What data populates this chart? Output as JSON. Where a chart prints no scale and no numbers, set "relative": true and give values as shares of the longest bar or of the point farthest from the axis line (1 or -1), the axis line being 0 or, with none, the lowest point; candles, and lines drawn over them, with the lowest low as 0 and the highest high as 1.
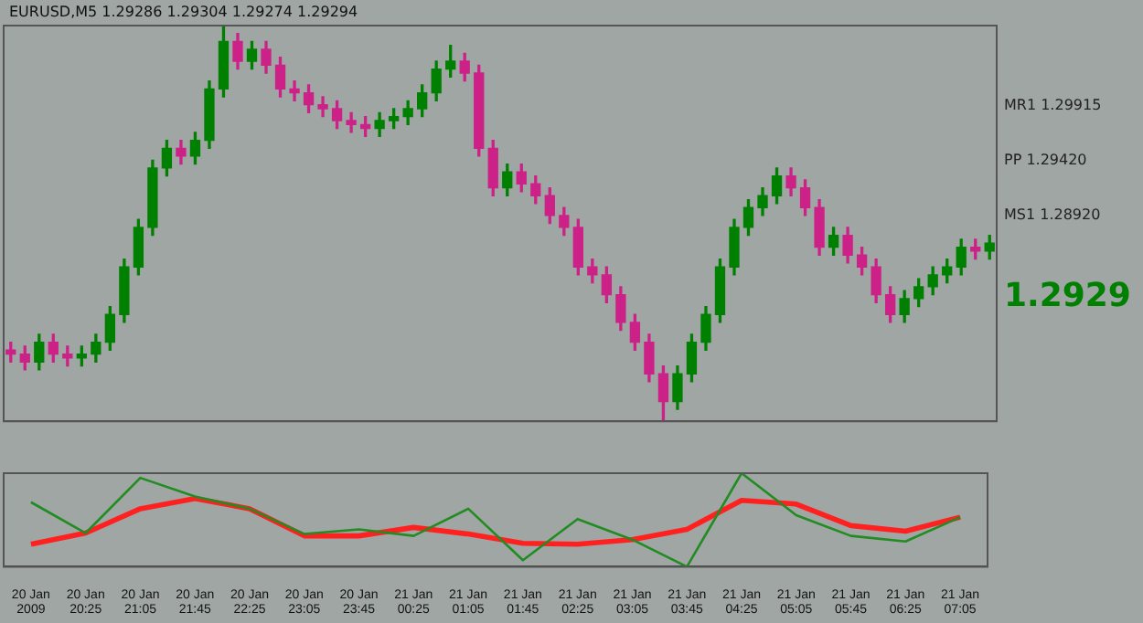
{
  "chart_data": [
    {
      "type": "candlestick",
      "title": "EURUSD,M5 1.29286 1.29304 1.29274 1.29294",
      "relative": true,
      "annotations": [
        "MR1 1.29915",
        "PP 1.29420",
        "MS1 1.28920",
        "1.2929"
      ],
      "categories": [
        null,
        null,
        null,
        null,
        null,
        null,
        null,
        null,
        null,
        null,
        null,
        null,
        null,
        null,
        null,
        null,
        null,
        null,
        null,
        null,
        null,
        null,
        null,
        null,
        null,
        null,
        null,
        null,
        null,
        null,
        null,
        null,
        null,
        null,
        null,
        null,
        null,
        null,
        null,
        null,
        null,
        null,
        null,
        null,
        null,
        null,
        null,
        null,
        null,
        null,
        null,
        null,
        null,
        null,
        null,
        null,
        null,
        null,
        null,
        null,
        null,
        null,
        null,
        null,
        null,
        null,
        null,
        null,
        null,
        null
      ],
      "ohlc": [
        [
          0.18,
          0.2,
          0.15,
          0.17
        ],
        [
          0.17,
          0.19,
          0.13,
          0.15
        ],
        [
          0.15,
          0.22,
          0.13,
          0.2
        ],
        [
          0.2,
          0.22,
          0.15,
          0.17
        ],
        [
          0.17,
          0.19,
          0.14,
          0.16
        ],
        [
          0.16,
          0.19,
          0.14,
          0.17
        ],
        [
          0.17,
          0.22,
          0.15,
          0.2
        ],
        [
          0.2,
          0.29,
          0.18,
          0.27
        ],
        [
          0.27,
          0.41,
          0.25,
          0.39
        ],
        [
          0.39,
          0.51,
          0.37,
          0.49
        ],
        [
          0.49,
          0.66,
          0.47,
          0.64
        ],
        [
          0.64,
          0.71,
          0.62,
          0.69
        ],
        [
          0.69,
          0.71,
          0.65,
          0.67
        ],
        [
          0.67,
          0.73,
          0.65,
          0.71
        ],
        [
          0.71,
          0.86,
          0.69,
          0.84
        ],
        [
          0.84,
          1,
          0.82,
          0.96
        ],
        [
          0.96,
          0.98,
          0.89,
          0.91
        ],
        [
          0.91,
          0.96,
          0.89,
          0.94
        ],
        [
          0.94,
          0.96,
          0.88,
          0.9
        ],
        [
          0.9,
          0.92,
          0.82,
          0.84
        ],
        [
          0.84,
          0.86,
          0.81,
          0.83
        ],
        [
          0.83,
          0.85,
          0.78,
          0.8
        ],
        [
          0.8,
          0.82,
          0.77,
          0.79
        ],
        [
          0.79,
          0.81,
          0.74,
          0.76
        ],
        [
          0.76,
          0.78,
          0.73,
          0.75
        ],
        [
          0.75,
          0.77,
          0.72,
          0.74
        ],
        [
          0.74,
          0.78,
          0.72,
          0.76
        ],
        [
          0.76,
          0.79,
          0.74,
          0.77
        ],
        [
          0.77,
          0.81,
          0.75,
          0.79
        ],
        [
          0.79,
          0.85,
          0.77,
          0.83
        ],
        [
          0.83,
          0.91,
          0.81,
          0.89
        ],
        [
          0.89,
          0.95,
          0.87,
          0.91
        ],
        [
          0.91,
          0.93,
          0.86,
          0.88
        ],
        [
          0.88,
          0.9,
          0.67,
          0.69
        ],
        [
          0.69,
          0.71,
          0.57,
          0.59
        ],
        [
          0.59,
          0.65,
          0.57,
          0.63
        ],
        [
          0.63,
          0.65,
          0.58,
          0.6
        ],
        [
          0.6,
          0.62,
          0.55,
          0.57
        ],
        [
          0.57,
          0.59,
          0.5,
          0.52
        ],
        [
          0.52,
          0.54,
          0.47,
          0.49
        ],
        [
          0.49,
          0.51,
          0.37,
          0.39
        ],
        [
          0.39,
          0.41,
          0.35,
          0.37
        ],
        [
          0.37,
          0.39,
          0.3,
          0.32
        ],
        [
          0.32,
          0.34,
          0.23,
          0.25
        ],
        [
          0.25,
          0.27,
          0.18,
          0.2
        ],
        [
          0.2,
          0.22,
          0.1,
          0.12
        ],
        [
          0.12,
          0.14,
          0,
          0.05
        ],
        [
          0.05,
          0.14,
          0.03,
          0.12
        ],
        [
          0.12,
          0.22,
          0.1,
          0.2
        ],
        [
          0.2,
          0.29,
          0.18,
          0.27
        ],
        [
          0.27,
          0.41,
          0.25,
          0.39
        ],
        [
          0.39,
          0.51,
          0.37,
          0.49
        ],
        [
          0.49,
          0.56,
          0.47,
          0.54
        ],
        [
          0.54,
          0.59,
          0.52,
          0.57
        ],
        [
          0.57,
          0.64,
          0.55,
          0.62
        ],
        [
          0.62,
          0.64,
          0.57,
          0.59
        ],
        [
          0.59,
          0.61,
          0.52,
          0.54
        ],
        [
          0.54,
          0.56,
          0.42,
          0.44
        ],
        [
          0.44,
          0.49,
          0.42,
          0.47
        ],
        [
          0.47,
          0.49,
          0.4,
          0.42
        ],
        [
          0.42,
          0.44,
          0.37,
          0.39
        ],
        [
          0.39,
          0.41,
          0.3,
          0.32
        ],
        [
          0.32,
          0.34,
          0.25,
          0.27
        ],
        [
          0.27,
          0.33,
          0.25,
          0.31
        ],
        [
          0.31,
          0.36,
          0.29,
          0.34
        ],
        [
          0.34,
          0.39,
          0.32,
          0.37
        ],
        [
          0.37,
          0.41,
          0.35,
          0.39
        ],
        [
          0.39,
          0.46,
          0.37,
          0.44
        ],
        [
          0.44,
          0.46,
          0.41,
          0.43
        ],
        [
          0.43,
          0.47,
          0.41,
          0.45
        ]
      ],
      "colors": [
        "#cc2288",
        "#cc2288",
        "#008000",
        "#cc2288",
        "#cc2288",
        "#008000",
        "#008000",
        "#008000",
        "#008000",
        "#008000",
        "#008000",
        "#008000",
        "#cc2288",
        "#008000",
        "#008000",
        "#008000",
        "#cc2288",
        "#008000",
        "#cc2288",
        "#cc2288",
        "#cc2288",
        "#cc2288",
        "#cc2288",
        "#cc2288",
        "#cc2288",
        "#cc2288",
        "#008000",
        "#008000",
        "#008000",
        "#008000",
        "#008000",
        "#008000",
        "#cc2288",
        "#cc2288",
        "#cc2288",
        "#008000",
        "#cc2288",
        "#cc2288",
        "#cc2288",
        "#cc2288",
        "#cc2288",
        "#cc2288",
        "#cc2288",
        "#cc2288",
        "#cc2288",
        "#cc2288",
        "#cc2288",
        "#008000",
        "#008000",
        "#008000",
        "#008000",
        "#008000",
        "#008000",
        "#008000",
        "#008000",
        "#cc2288",
        "#cc2288",
        "#cc2288",
        "#008000",
        "#cc2288",
        "#cc2288",
        "#cc2288",
        "#cc2288",
        "#008000",
        "#008000",
        "#008000",
        "#008000",
        "#008000",
        "#cc2288",
        "#008000"
      ]
    },
    {
      "type": "line",
      "relative": true,
      "categories": [
        "20 Jan 2009",
        "20 Jan 20:25",
        "20 Jan 21:05",
        "20 Jan 21:45",
        "20 Jan 22:25",
        "20 Jan 23:05",
        "20 Jan 23:45",
        "21 Jan 00:25",
        "21 Jan 01:05",
        "21 Jan 01:45",
        "21 Jan 02:25",
        "21 Jan 03:05",
        "21 Jan 03:45",
        "21 Jan 04:25",
        "21 Jan 05:05",
        "21 Jan 05:45",
        "21 Jan 06:25",
        "21 Jan 07:05"
      ],
      "series": [
        {
          "color": "#228b22",
          "values": [
            0.69,
            0.36,
            0.95,
            0.75,
            0.62,
            0.35,
            0.4,
            0.33,
            0.62,
            0.07,
            0.51,
            0.29,
            0,
            1,
            0.55,
            0.33,
            0.27,
            0.53
          ]
        },
        {
          "color": "#ff2020",
          "values": [
            0.24,
            0.36,
            0.62,
            0.73,
            0.62,
            0.33,
            0.33,
            0.42,
            0.35,
            0.25,
            0.24,
            0.29,
            0.4,
            0.71,
            0.67,
            0.44,
            0.38,
            0.53
          ]
        }
      ]
    }
  ]
}
